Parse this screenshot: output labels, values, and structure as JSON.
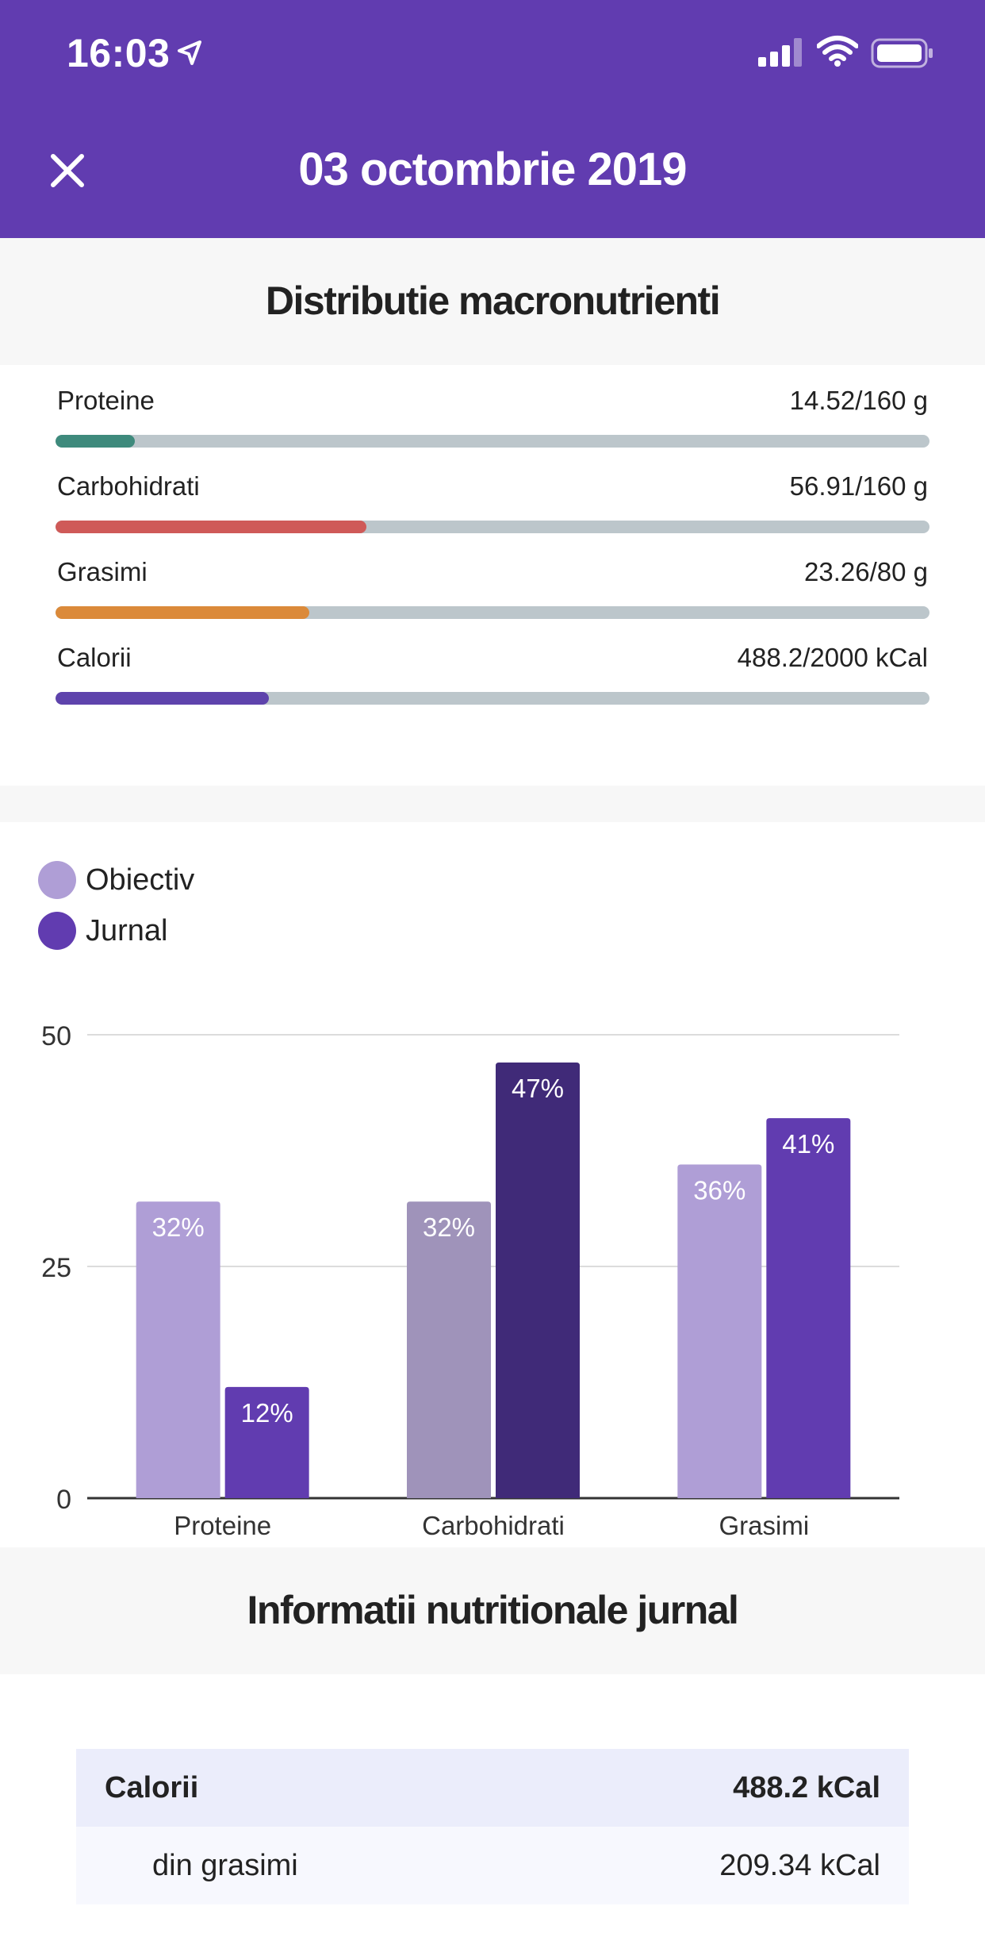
{
  "status_bar": {
    "time": "16:03"
  },
  "header": {
    "title": "03 octombrie 2019"
  },
  "section1": {
    "title": "Distributie macronutrienti"
  },
  "macros": [
    {
      "label": "Proteine",
      "value": "14.52/160 g",
      "fraction": 0.0908,
      "color": "#3E8A7C"
    },
    {
      "label": "Carbohidrati",
      "value": "56.91/160 g",
      "fraction": 0.3557,
      "color": "#CF5A58"
    },
    {
      "label": "Grasimi",
      "value": "23.26/80 g",
      "fraction": 0.2908,
      "color": "#DB8A3A"
    },
    {
      "label": "Calorii",
      "value": "488.2/2000 kCal",
      "fraction": 0.2441,
      "color": "#5E43AC"
    }
  ],
  "chart_data": {
    "type": "bar",
    "categories": [
      "Proteine",
      "Carbohidrati",
      "Grasimi"
    ],
    "series": [
      {
        "name": "Obiectiv",
        "values": [
          32,
          32,
          36
        ],
        "labels": [
          "32%",
          "32%",
          "36%"
        ],
        "color": "#AF9ED6"
      },
      {
        "name": "Jurnal",
        "values": [
          12,
          47,
          41
        ],
        "labels": [
          "12%",
          "47%",
          "41%"
        ],
        "color": "#613CB0"
      }
    ],
    "highlight": {
      "category": "Carbohidrati",
      "colors": [
        "#9F93BA",
        "#402A78"
      ]
    },
    "yticks": [
      "0",
      "25",
      "50"
    ],
    "ylim": [
      0,
      50
    ],
    "grid": true,
    "legend": "top-left"
  },
  "section2": {
    "title": "Informatii nutritionale jurnal"
  },
  "nutrition_table": [
    {
      "label": "Calorii",
      "value": "488.2 kCal",
      "kind": "head"
    },
    {
      "label": "din grasimi",
      "value": "209.34 kCal",
      "kind": "sub"
    }
  ]
}
